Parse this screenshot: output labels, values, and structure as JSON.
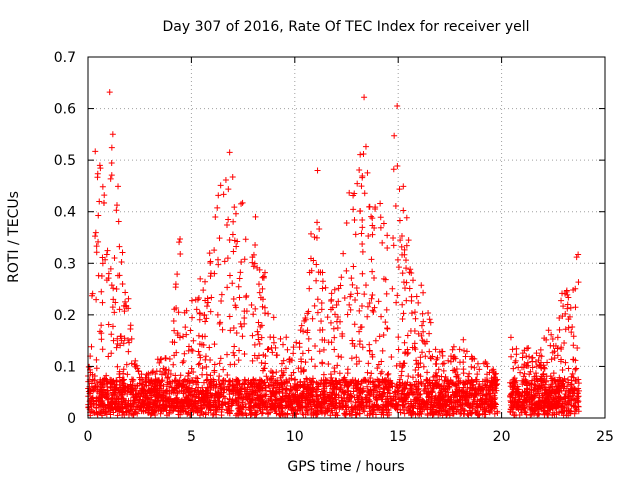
{
  "chart_data": {
    "type": "scatter",
    "title": "Day 307 of 2016, Rate Of TEC Index for receiver yell",
    "xlabel": "GPS time / hours",
    "ylabel": "ROTI / TECUs",
    "xlim": [
      0,
      25
    ],
    "ylim": [
      0,
      0.7
    ],
    "xticks": [
      0,
      5,
      10,
      15,
      20,
      25
    ],
    "yticks": [
      0,
      0.1,
      0.2,
      0.3,
      0.4,
      0.5,
      0.6,
      0.7
    ],
    "xtick_labels": [
      "0",
      "5",
      "10",
      "15",
      "20",
      "25"
    ],
    "ytick_labels": [
      "0",
      "0.1",
      "0.2",
      "0.3",
      "0.4",
      "0.5",
      "0.6",
      "0.7"
    ],
    "grid": true,
    "marker": "+",
    "color": "#ff0000",
    "gap_hours": [
      19.8,
      20.4
    ],
    "envelope": [
      [
        0.0,
        0.14
      ],
      [
        0.3,
        0.31
      ],
      [
        0.5,
        0.52
      ],
      [
        0.8,
        0.49
      ],
      [
        1.0,
        0.33
      ],
      [
        1.2,
        0.63
      ],
      [
        1.5,
        0.45
      ],
      [
        1.8,
        0.3
      ],
      [
        2.2,
        0.13
      ],
      [
        2.6,
        0.09
      ],
      [
        3.0,
        0.1
      ],
      [
        3.5,
        0.13
      ],
      [
        4.0,
        0.12
      ],
      [
        4.4,
        0.35
      ],
      [
        4.8,
        0.2
      ],
      [
        5.3,
        0.26
      ],
      [
        5.8,
        0.32
      ],
      [
        6.2,
        0.4
      ],
      [
        6.5,
        0.5
      ],
      [
        6.8,
        0.51
      ],
      [
        7.2,
        0.44
      ],
      [
        7.6,
        0.41
      ],
      [
        8.1,
        0.34
      ],
      [
        8.6,
        0.28
      ],
      [
        9.0,
        0.2
      ],
      [
        9.5,
        0.16
      ],
      [
        10.0,
        0.14
      ],
      [
        10.5,
        0.2
      ],
      [
        11.0,
        0.48
      ],
      [
        11.3,
        0.3
      ],
      [
        11.8,
        0.24
      ],
      [
        12.2,
        0.3
      ],
      [
        12.6,
        0.44
      ],
      [
        13.0,
        0.48
      ],
      [
        13.3,
        0.62
      ],
      [
        13.7,
        0.47
      ],
      [
        14.1,
        0.45
      ],
      [
        14.5,
        0.38
      ],
      [
        14.9,
        0.6
      ],
      [
        15.3,
        0.43
      ],
      [
        15.7,
        0.3
      ],
      [
        16.1,
        0.26
      ],
      [
        16.5,
        0.2
      ],
      [
        17.0,
        0.14
      ],
      [
        17.5,
        0.12
      ],
      [
        18.0,
        0.17
      ],
      [
        18.5,
        0.13
      ],
      [
        19.0,
        0.12
      ],
      [
        19.5,
        0.1
      ],
      [
        19.8,
        0.09
      ],
      [
        20.4,
        0.16
      ],
      [
        20.9,
        0.13
      ],
      [
        21.3,
        0.15
      ],
      [
        21.8,
        0.12
      ],
      [
        22.2,
        0.2
      ],
      [
        22.6,
        0.14
      ],
      [
        23.0,
        0.27
      ],
      [
        23.3,
        0.24
      ],
      [
        23.6,
        0.32
      ],
      [
        23.75,
        0.3
      ]
    ],
    "notable_points": [
      [
        1.05,
        0.632
      ],
      [
        13.35,
        0.622
      ],
      [
        14.95,
        0.605
      ],
      [
        0.35,
        0.517
      ],
      [
        6.85,
        0.515
      ],
      [
        11.1,
        0.48
      ],
      [
        8.1,
        0.39
      ],
      [
        4.45,
        0.347
      ],
      [
        23.7,
        0.317
      ]
    ]
  }
}
